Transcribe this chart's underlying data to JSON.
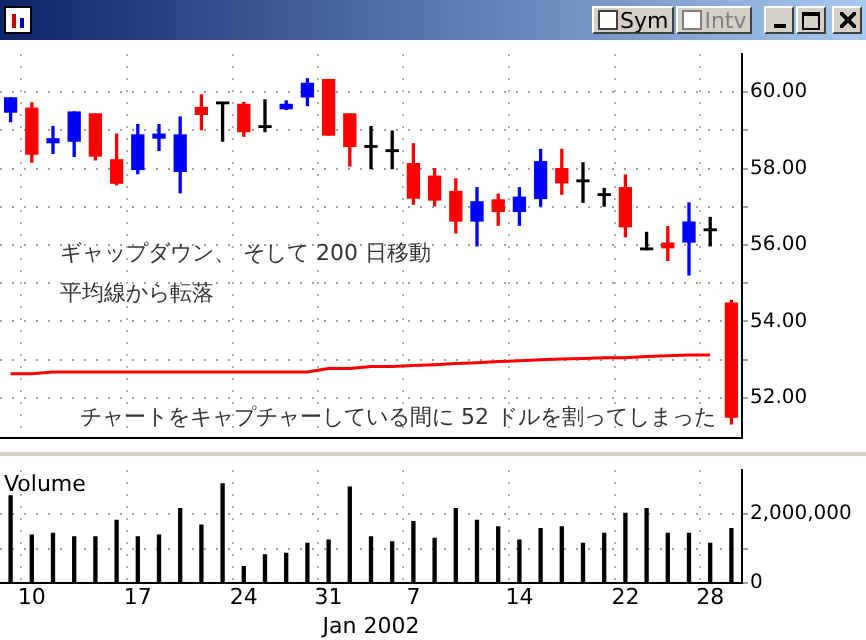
{
  "chart_data": [
    {
      "type": "candlestick",
      "categories": [
        null,
        "10",
        null,
        null,
        null,
        null,
        "17",
        null,
        null,
        null,
        null,
        "24",
        null,
        null,
        null,
        "31",
        null,
        null,
        null,
        "7",
        null,
        null,
        null,
        null,
        "14",
        null,
        null,
        null,
        null,
        "22",
        null,
        null,
        null,
        "28",
        null
      ],
      "ohlc": [
        [
          59.48,
          59.85,
          59.23,
          59.85
        ],
        [
          59.58,
          59.72,
          58.17,
          58.38
        ],
        [
          58.68,
          59.1,
          58.4,
          58.78
        ],
        [
          58.72,
          59.48,
          58.32,
          59.48
        ],
        [
          59.43,
          59.43,
          58.23,
          58.33
        ],
        [
          58.23,
          58.9,
          57.58,
          57.62
        ],
        [
          57.98,
          59.15,
          57.87,
          58.88
        ],
        [
          58.8,
          59.15,
          58.48,
          58.9
        ],
        [
          57.93,
          59.35,
          57.37,
          58.88
        ],
        [
          59.6,
          59.93,
          59.02,
          59.42
        ],
        [
          59.72,
          59.73,
          58.72,
          59.72
        ],
        [
          59.68,
          59.73,
          58.85,
          58.97
        ],
        [
          59.1,
          59.8,
          58.97,
          59.1
        ],
        [
          59.57,
          59.77,
          59.55,
          59.68
        ],
        [
          59.88,
          60.35,
          59.65,
          60.23
        ],
        [
          60.33,
          60.33,
          58.88,
          58.88
        ],
        [
          59.43,
          59.43,
          58.07,
          58.58
        ],
        [
          58.58,
          59.1,
          58.0,
          58.58
        ],
        [
          58.47,
          58.98,
          58.0,
          58.47
        ],
        [
          58.13,
          58.65,
          57.07,
          57.23
        ],
        [
          57.8,
          58.0,
          57.03,
          57.18
        ],
        [
          57.4,
          57.73,
          56.32,
          56.63
        ],
        [
          56.63,
          57.5,
          55.98,
          57.13
        ],
        [
          57.18,
          57.33,
          56.52,
          56.88
        ],
        [
          56.88,
          57.5,
          56.52,
          57.25
        ],
        [
          57.22,
          58.5,
          57.02,
          58.18
        ],
        [
          58.0,
          58.5,
          57.33,
          57.63
        ],
        [
          57.68,
          58.15,
          57.12,
          57.68
        ],
        [
          57.32,
          57.48,
          57.02,
          57.32
        ],
        [
          57.5,
          57.83,
          56.22,
          56.48
        ],
        [
          55.9,
          56.33,
          55.88,
          55.9
        ],
        [
          56.05,
          56.48,
          55.6,
          55.93
        ],
        [
          56.08,
          57.1,
          55.22,
          56.6
        ],
        [
          56.4,
          56.72,
          55.98,
          56.4
        ],
        [
          54.48,
          54.55,
          51.32,
          51.5
        ]
      ],
      "colors": [
        "#0000ff",
        "#ff0000",
        "#0000ff",
        "#0000ff",
        "#ff0000",
        "#ff0000",
        "#0000ff",
        "#0000ff",
        "#0000ff",
        "#ff0000",
        "#000000",
        "#ff0000",
        "#000000",
        "#0000ff",
        "#0000ff",
        "#ff0000",
        "#ff0000",
        "#000000",
        "#000000",
        "#ff0000",
        "#ff0000",
        "#ff0000",
        "#0000ff",
        "#ff0000",
        "#0000ff",
        "#0000ff",
        "#ff0000",
        "#000000",
        "#000000",
        "#ff0000",
        "#000000",
        "#ff0000",
        "#0000ff",
        "#000000",
        "#ff0000"
      ],
      "series": [
        {
          "type": "line",
          "color": "#ff0000",
          "values": [
            52.63,
            52.63,
            52.68,
            52.68,
            52.68,
            52.68,
            52.68,
            52.68,
            52.68,
            52.68,
            52.68,
            52.68,
            52.68,
            52.68,
            52.68,
            52.77,
            52.77,
            52.82,
            52.82,
            52.85,
            52.87,
            52.9,
            52.92,
            52.95,
            52.97,
            53.0,
            53.02,
            53.03,
            53.05,
            53.05,
            53.08,
            53.1,
            53.12,
            53.12,
            null
          ]
        }
      ],
      "ylim": [
        50.95,
        61.0
      ],
      "yticks": [
        {
          "value": 52,
          "label": "52.00"
        },
        {
          "value": 53,
          "label": null
        },
        {
          "value": 54,
          "label": "54.00"
        },
        {
          "value": 55,
          "label": null
        },
        {
          "value": 56,
          "label": "56.00"
        },
        {
          "value": 57,
          "label": null
        },
        {
          "value": 58,
          "label": "58.00"
        },
        {
          "value": 59,
          "label": null
        },
        {
          "value": 60,
          "label": "60.00"
        }
      ],
      "grid": true,
      "tick_labels": "y",
      "annotations": [
        "ギャップダウン、 そして 200 日移動平均線から転落",
        "チャートをキャプチャーしている間に 52 ドルを割ってしまった",
        "Sym",
        "Intv"
      ]
    },
    {
      "type": "bar",
      "title": "Volume",
      "xlabel": "Jan 2002",
      "categories": [
        null,
        "10",
        null,
        null,
        null,
        null,
        "17",
        null,
        null,
        null,
        null,
        "24",
        null,
        null,
        null,
        "31",
        null,
        null,
        null,
        "7",
        null,
        null,
        null,
        null,
        "14",
        null,
        null,
        null,
        null,
        "22",
        null,
        null,
        null,
        "28",
        null
      ],
      "values": [
        2530000,
        1390000,
        1440000,
        1340000,
        1340000,
        1820000,
        1340000,
        1390000,
        2160000,
        1680000,
        2880000,
        480000,
        820000,
        860000,
        1150000,
        1250000,
        2780000,
        1340000,
        1200000,
        1780000,
        1300000,
        2160000,
        1820000,
        1630000,
        1250000,
        1580000,
        1630000,
        1150000,
        1440000,
        2020000,
        2160000,
        1440000,
        1440000,
        1150000,
        1580000
      ],
      "color": "#000000",
      "ylim": [
        0,
        3280000
      ],
      "yticks": [
        0,
        {
          "value": 1000000,
          "label": null
        },
        {
          "value": 2000000,
          "label": "2,000,000"
        }
      ],
      "grid": true
    }
  ]
}
